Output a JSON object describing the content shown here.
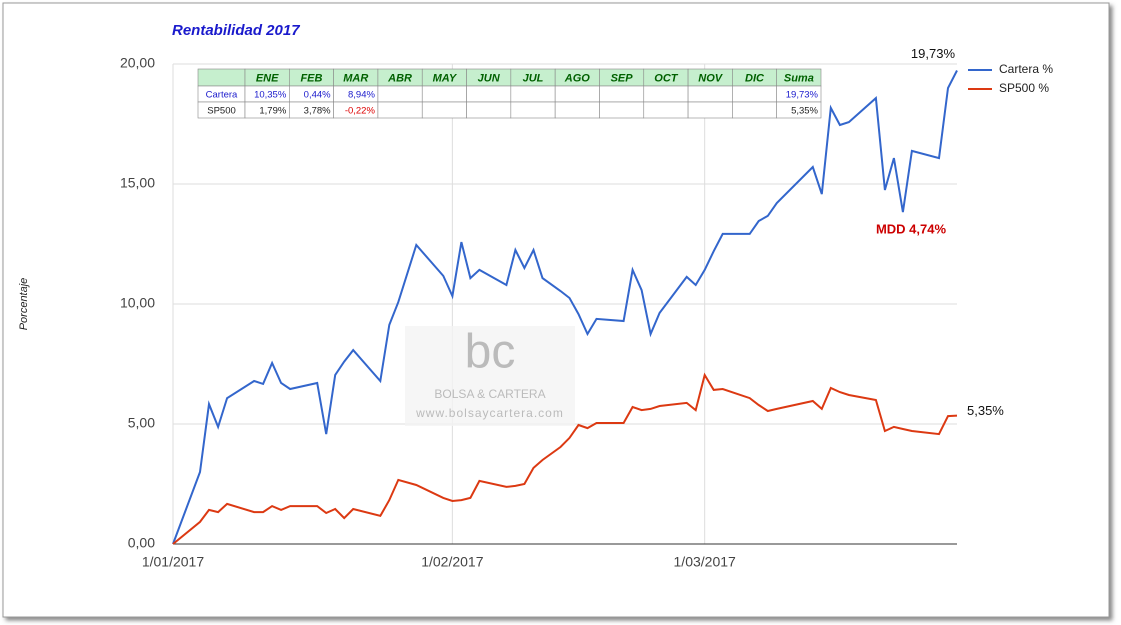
{
  "chart_data": {
    "type": "line",
    "title": "Rentabilidad 2017",
    "y_label": "Porcentaje",
    "x": [
      "2017-01-01",
      "2017-01-04",
      "2017-01-05",
      "2017-01-06",
      "2017-01-07",
      "2017-01-10",
      "2017-01-11",
      "2017-01-12",
      "2017-01-13",
      "2017-01-14",
      "2017-01-17",
      "2017-01-18",
      "2017-01-19",
      "2017-01-20",
      "2017-01-21",
      "2017-01-24",
      "2017-01-25",
      "2017-01-26",
      "2017-01-28",
      "2017-01-31",
      "2017-02-01",
      "2017-02-02",
      "2017-02-03",
      "2017-02-04",
      "2017-02-07",
      "2017-02-08",
      "2017-02-09",
      "2017-02-10",
      "2017-02-11",
      "2017-02-13",
      "2017-02-14",
      "2017-02-15",
      "2017-02-16",
      "2017-02-17",
      "2017-02-20",
      "2017-02-21",
      "2017-02-22",
      "2017-02-23",
      "2017-02-24",
      "2017-02-27",
      "2017-02-28",
      "2017-03-01",
      "2017-03-02",
      "2017-03-03",
      "2017-03-06",
      "2017-03-07",
      "2017-03-08",
      "2017-03-09",
      "2017-03-13",
      "2017-03-14",
      "2017-03-15",
      "2017-03-16",
      "2017-03-17",
      "2017-03-20",
      "2017-03-21",
      "2017-03-22",
      "2017-03-23",
      "2017-03-24",
      "2017-03-27",
      "2017-03-28",
      "2017-03-29"
    ],
    "series": [
      {
        "name": "Cartera %",
        "color": "#3366cc",
        "values": [
          0,
          3.0,
          5.83,
          4.88,
          6.08,
          6.79,
          6.67,
          7.54,
          6.71,
          6.46,
          6.71,
          4.58,
          7.04,
          7.6,
          8.08,
          6.79,
          9.13,
          10.08,
          12.46,
          11.17,
          10.33,
          12.58,
          11.08,
          11.42,
          10.79,
          12.25,
          11.5,
          12.25,
          11.08,
          10.54,
          10.25,
          9.58,
          8.75,
          9.38,
          9.29,
          11.42,
          10.58,
          8.75,
          9.63,
          11.13,
          10.79,
          11.42,
          12.2,
          12.92,
          12.92,
          13.46,
          13.67,
          14.21,
          15.71,
          14.58,
          18.17,
          17.46,
          17.58,
          18.58,
          14.75,
          16.08,
          13.83,
          16.38,
          16.08,
          19.0,
          19.73
        ],
        "value_labels": [
          null,
          null,
          null,
          null,
          null,
          null,
          null,
          null,
          null,
          null,
          null,
          null,
          null,
          null,
          null,
          null,
          null,
          null,
          null,
          null,
          null,
          null,
          null,
          null,
          null,
          null,
          null,
          null,
          null,
          null,
          null,
          null,
          null,
          null,
          null,
          null,
          null,
          null,
          null,
          null,
          null,
          null,
          null,
          null,
          null,
          null,
          null,
          null,
          null,
          null,
          null,
          null,
          null,
          null,
          null,
          null,
          null,
          null,
          null,
          null,
          "19,73%"
        ]
      },
      {
        "name": "SP500 %",
        "color": "#dc3912",
        "values": [
          0,
          0.92,
          1.42,
          1.33,
          1.67,
          1.33,
          1.33,
          1.58,
          1.42,
          1.58,
          1.58,
          1.29,
          1.46,
          1.08,
          1.46,
          1.17,
          1.83,
          2.67,
          2.46,
          1.92,
          1.79,
          1.83,
          1.92,
          2.63,
          2.38,
          2.42,
          2.5,
          3.17,
          3.5,
          4.04,
          4.42,
          4.96,
          4.83,
          5.04,
          5.04,
          5.71,
          5.58,
          5.63,
          5.75,
          5.88,
          5.58,
          7.04,
          6.42,
          6.46,
          6.08,
          5.79,
          5.54,
          5.63,
          5.96,
          5.63,
          6.5,
          6.33,
          6.21,
          6.0,
          4.71,
          4.88,
          4.79,
          4.71,
          4.58,
          5.33,
          5.35
        ],
        "value_labels": [
          null,
          null,
          null,
          null,
          null,
          null,
          null,
          null,
          null,
          null,
          null,
          null,
          null,
          null,
          null,
          null,
          null,
          null,
          null,
          null,
          null,
          null,
          null,
          null,
          null,
          null,
          null,
          null,
          null,
          null,
          null,
          null,
          null,
          null,
          null,
          null,
          null,
          null,
          null,
          null,
          null,
          null,
          null,
          null,
          null,
          null,
          null,
          null,
          null,
          null,
          null,
          null,
          null,
          null,
          null,
          null,
          null,
          null,
          null,
          null,
          "5,35%"
        ]
      }
    ],
    "xlim": [
      "2017-01-01",
      "2017-03-29"
    ],
    "xticks": [
      {
        "value": "2017-01-01",
        "label": "1/01/2017"
      },
      {
        "value": "2017-02-01",
        "label": "1/02/2017"
      },
      {
        "value": "2017-03-01",
        "label": "1/03/2017"
      }
    ],
    "ylim": [
      0,
      20
    ],
    "yticks": [
      {
        "value": 0,
        "label": "0,00"
      },
      {
        "value": 5,
        "label": "5,00"
      },
      {
        "value": 10,
        "label": "10,00"
      },
      {
        "value": 15,
        "label": "15,00"
      },
      {
        "value": 20,
        "label": "20,00"
      }
    ],
    "grid": true,
    "legend": "right",
    "annotations": [
      {
        "text": "MDD 4,74%",
        "color": "#cc0000"
      }
    ],
    "table": {
      "header": [
        null,
        "ENE",
        "FEB",
        "MAR",
        "ABR",
        "MAY",
        "JUN",
        "JUL",
        "AGO",
        "SEP",
        "OCT",
        "NOV",
        "DIC",
        "Suma"
      ],
      "rows": [
        [
          "Cartera",
          "10,35%",
          "0,44%",
          "8,94%",
          null,
          null,
          null,
          null,
          null,
          null,
          null,
          null,
          null,
          "19,73%"
        ],
        [
          "SP500",
          "1,79%",
          "3,78%",
          "-0,22%",
          null,
          null,
          null,
          null,
          null,
          null,
          null,
          null,
          null,
          "5,35%"
        ]
      ]
    },
    "watermark": {
      "logo": "bc",
      "name": "BOLSA & CARTERA",
      "url": "www.bolsaycartera.com"
    }
  }
}
